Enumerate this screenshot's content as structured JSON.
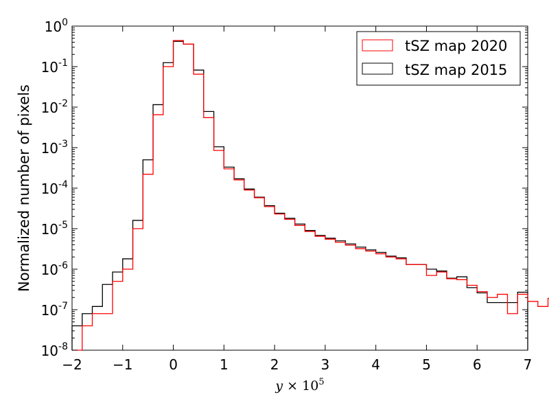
{
  "chart_data": {
    "type": "step-histogram",
    "xlabel": "y × 10^5",
    "ylabel": "Normalized number of pixels",
    "xlim": [
      -2,
      7
    ],
    "ylim": [
      1e-08,
      1
    ],
    "yscale": "log",
    "x_ticks": [
      "−2",
      "−1",
      "0",
      "1",
      "2",
      "3",
      "4",
      "5",
      "6",
      "7"
    ],
    "y_ticks": [
      {
        "base": "10",
        "exp": "-8"
      },
      {
        "base": "10",
        "exp": "-7"
      },
      {
        "base": "10",
        "exp": "-6"
      },
      {
        "base": "10",
        "exp": "-5"
      },
      {
        "base": "10",
        "exp": "-4"
      },
      {
        "base": "10",
        "exp": "-3"
      },
      {
        "base": "10",
        "exp": "-2"
      },
      {
        "base": "10",
        "exp": "-1"
      },
      {
        "base": "10",
        "exp": "0"
      }
    ],
    "legend": {
      "placement": "top-right"
    },
    "bin_edges_start": -2.0,
    "bin_width": 0.2,
    "series": [
      {
        "name": "tSZ map 2020",
        "color": "#ff0000",
        "values": [
          1e-08,
          4e-08,
          8e-08,
          8e-08,
          5e-07,
          1e-06,
          1e-05,
          0.00022,
          0.0065,
          0.1,
          0.44,
          0.36,
          0.065,
          0.0055,
          0.00085,
          0.0003,
          0.00016,
          9e-05,
          5.8e-05,
          3.5e-05,
          2.3e-05,
          1.7e-05,
          1.2e-05,
          8.5e-06,
          6.5e-06,
          5.5e-06,
          4.6e-06,
          3.9e-06,
          3.2e-06,
          2.8e-06,
          2.4e-06,
          2e-06,
          1.8e-06,
          1.3e-06,
          1.3e-06,
          7e-07,
          8.5e-07,
          5.8e-07,
          5.5e-07,
          4e-07,
          2.8e-07,
          2e-07,
          2.4e-07,
          8e-08,
          2.4e-07,
          1.6e-07,
          1.2e-07,
          1.9e-07
        ]
      },
      {
        "name": "tSZ map 2015",
        "color": "#000000",
        "values": [
          4e-08,
          8e-08,
          1.2e-07,
          4.2e-07,
          8.5e-07,
          1.8e-06,
          1.6e-05,
          0.0005,
          0.0115,
          0.125,
          0.42,
          0.36,
          0.082,
          0.0078,
          0.00105,
          0.00033,
          0.00017,
          9.5e-05,
          6e-05,
          3.7e-05,
          2.4e-05,
          1.8e-05,
          1.3e-05,
          9e-06,
          6.8e-06,
          5.8e-06,
          5e-06,
          4.2e-06,
          3.5e-06,
          3e-06,
          2.6e-06,
          2.1e-06,
          1.9e-06,
          1.3e-06,
          1.3e-06,
          1e-06,
          9e-07,
          6e-07,
          6.5e-07,
          3.5e-07,
          2.6e-07,
          1.5e-07,
          1.5e-07,
          1.5e-07,
          2.7e-07
        ]
      }
    ]
  }
}
